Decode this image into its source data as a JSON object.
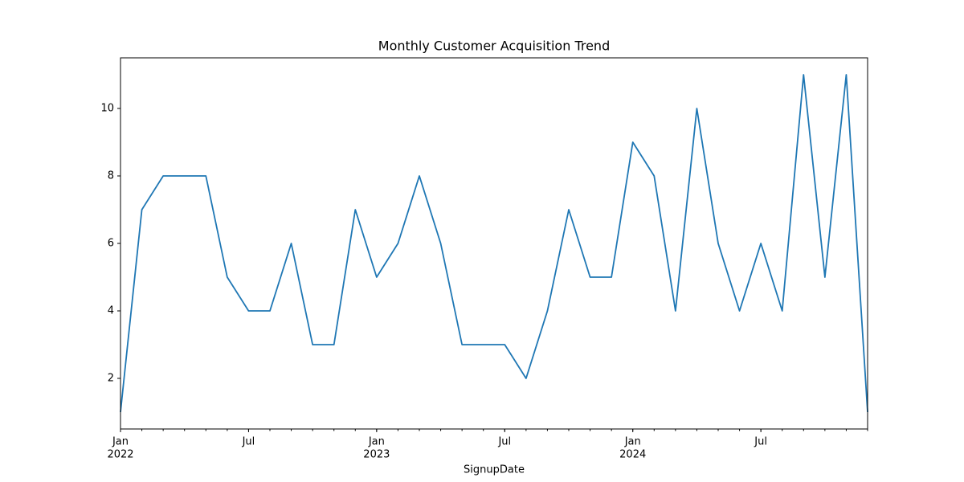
{
  "chart_data": {
    "type": "line",
    "title": "Monthly Customer Acquisition Trend",
    "xlabel": "SignupDate",
    "x": [
      "2022-01",
      "2022-02",
      "2022-03",
      "2022-04",
      "2022-05",
      "2022-06",
      "2022-07",
      "2022-08",
      "2022-09",
      "2022-10",
      "2022-11",
      "2022-12",
      "2023-01",
      "2023-02",
      "2023-03",
      "2023-04",
      "2023-05",
      "2023-06",
      "2023-07",
      "2023-08",
      "2023-09",
      "2023-10",
      "2023-11",
      "2023-12",
      "2024-01",
      "2024-02",
      "2024-03",
      "2024-04",
      "2024-05",
      "2024-06",
      "2024-07",
      "2024-08",
      "2024-09",
      "2024-10",
      "2024-11",
      "2024-12"
    ],
    "series": [
      {
        "name": "SignupDate",
        "color": "#1f77b4",
        "values": [
          1,
          7,
          8,
          8,
          8,
          5,
          4,
          4,
          6,
          3,
          3,
          7,
          5,
          6,
          8,
          6,
          3,
          3,
          3,
          2,
          4,
          7,
          5,
          5,
          9,
          8,
          4,
          10,
          6,
          4,
          6,
          4,
          11,
          5,
          11,
          1
        ]
      }
    ],
    "xlim": [
      "2022-01",
      "2024-12"
    ],
    "xticks": [
      {
        "value": "2022-01",
        "label": "Jan",
        "year": "2022"
      },
      {
        "value": "2022-07",
        "label": "Jul"
      },
      {
        "value": "2023-01",
        "label": "Jan",
        "year": "2023"
      },
      {
        "value": "2023-07",
        "label": "Jul"
      },
      {
        "value": "2024-01",
        "label": "Jan",
        "year": "2024"
      },
      {
        "value": "2024-07",
        "label": "Jul"
      }
    ],
    "ylim": [
      0.5,
      11.5
    ],
    "yticks": [
      2,
      4,
      6,
      8,
      10
    ],
    "grid": false
  }
}
